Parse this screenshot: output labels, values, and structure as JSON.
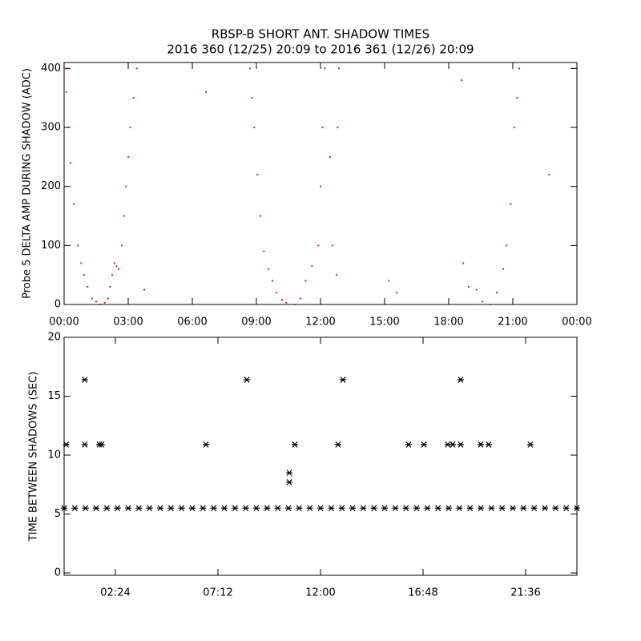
{
  "chart_data": [
    {
      "type": "scatter",
      "title": "RBSP-B SHORT ANT. SHADOW TIMES",
      "subtitle": "2016 360 (12/25) 20:09 to 2016 361 (12/26) 20:09",
      "y_label": "Probe 5 DELTA AMP DURING SHADOW (ADC)",
      "color": "#e02010",
      "xlim": [
        0,
        24
      ],
      "ylim": [
        0,
        410
      ],
      "xticks": [
        {
          "value": 0,
          "label": "00:00"
        },
        {
          "value": 3,
          "label": "03:00"
        },
        {
          "value": 6,
          "label": "06:00"
        },
        {
          "value": 9,
          "label": "09:00"
        },
        {
          "value": 12,
          "label": "12:00"
        },
        {
          "value": 15,
          "label": "15:00"
        },
        {
          "value": 18,
          "label": "18:00"
        },
        {
          "value": 21,
          "label": "21:00"
        },
        {
          "value": 24,
          "label": "00:00"
        }
      ],
      "yticks": [
        0,
        100,
        200,
        300,
        400
      ],
      "x": [
        0.0,
        0.1,
        0.2,
        0.3,
        0.45,
        0.64,
        0.8,
        0.94,
        1.1,
        1.3,
        1.5,
        1.7,
        1.9,
        2.06,
        2.15,
        2.25,
        2.36,
        2.45,
        2.55,
        2.7,
        2.8,
        2.89,
        3.0,
        3.1,
        3.25,
        3.4,
        3.75,
        6.64,
        8.7,
        8.8,
        8.9,
        9.05,
        9.19,
        9.35,
        9.56,
        9.75,
        9.94,
        10.2,
        10.4,
        10.8,
        11.06,
        11.3,
        11.6,
        11.9,
        12.0,
        12.1,
        12.2,
        12.45,
        12.56,
        12.75,
        12.86,
        12.8,
        15.2,
        15.56,
        18.6,
        18.68,
        18.94,
        19.3,
        19.58,
        19.95,
        20.25,
        20.55,
        20.7,
        20.9,
        21.07,
        21.2,
        21.3,
        22.7
      ],
      "values": [
        400,
        360,
        300,
        240,
        170,
        100,
        70,
        50,
        30,
        10,
        5,
        0,
        3,
        10,
        30,
        50,
        70,
        65,
        60,
        100,
        150,
        200,
        250,
        300,
        350,
        400,
        25,
        360,
        400,
        350,
        300,
        220,
        150,
        90,
        60,
        40,
        20,
        8,
        3,
        0,
        10,
        40,
        65,
        100,
        200,
        300,
        400,
        250,
        100,
        50,
        400,
        300,
        40,
        20,
        380,
        70,
        30,
        25,
        5,
        0,
        20,
        60,
        100,
        170,
        300,
        350,
        400,
        220
      ]
    },
    {
      "type": "asterisk",
      "y_label": "TIME BETWEEN SHADOWS (SEC)",
      "color": "#000000",
      "xlim": [
        0,
        24
      ],
      "ylim": [
        -0.2,
        20
      ],
      "xticks": [
        {
          "value": 2.4,
          "label": "02:24"
        },
        {
          "value": 7.2,
          "label": "07:12"
        },
        {
          "value": 12,
          "label": "12:00"
        },
        {
          "value": 16.8,
          "label": "16:48"
        },
        {
          "value": 21.6,
          "label": "21:36"
        }
      ],
      "yticks": [
        0,
        5,
        10,
        15,
        20
      ],
      "x": [
        0.0,
        0.5,
        1.0,
        1.5,
        2.0,
        2.5,
        3.0,
        3.5,
        4.0,
        4.5,
        5.0,
        5.5,
        6.0,
        6.5,
        7.0,
        7.5,
        8.0,
        8.5,
        9.0,
        9.5,
        10.0,
        10.5,
        11.0,
        11.5,
        12.0,
        12.5,
        13.0,
        13.5,
        14.0,
        14.5,
        15.0,
        15.5,
        16.0,
        16.5,
        17.0,
        17.5,
        18.0,
        18.5,
        19.0,
        19.5,
        20.0,
        20.5,
        21.0,
        21.5,
        22.0,
        22.5,
        23.0,
        23.5,
        24.0,
        0.1,
        0.97,
        0.97,
        1.65,
        1.76,
        6.64,
        8.55,
        10.54,
        10.54,
        10.8,
        12.82,
        13.05,
        16.12,
        16.84,
        17.96,
        18.19,
        18.56,
        18.56,
        19.5,
        19.87,
        21.82
      ],
      "values": [
        5.5,
        5.5,
        5.5,
        5.5,
        5.5,
        5.5,
        5.5,
        5.5,
        5.5,
        5.5,
        5.5,
        5.5,
        5.5,
        5.5,
        5.5,
        5.5,
        5.5,
        5.5,
        5.5,
        5.5,
        5.5,
        5.5,
        5.5,
        5.5,
        5.5,
        5.5,
        5.5,
        5.5,
        5.5,
        5.5,
        5.5,
        5.5,
        5.5,
        5.5,
        5.5,
        5.5,
        5.5,
        5.5,
        5.5,
        5.5,
        5.5,
        5.5,
        5.5,
        5.5,
        5.5,
        5.5,
        5.5,
        5.5,
        5.5,
        10.9,
        16.4,
        10.9,
        10.9,
        10.9,
        10.9,
        16.4,
        8.5,
        7.7,
        10.9,
        10.9,
        16.4,
        10.9,
        10.9,
        10.9,
        10.9,
        16.4,
        10.9,
        10.9,
        10.9,
        10.9
      ]
    }
  ]
}
